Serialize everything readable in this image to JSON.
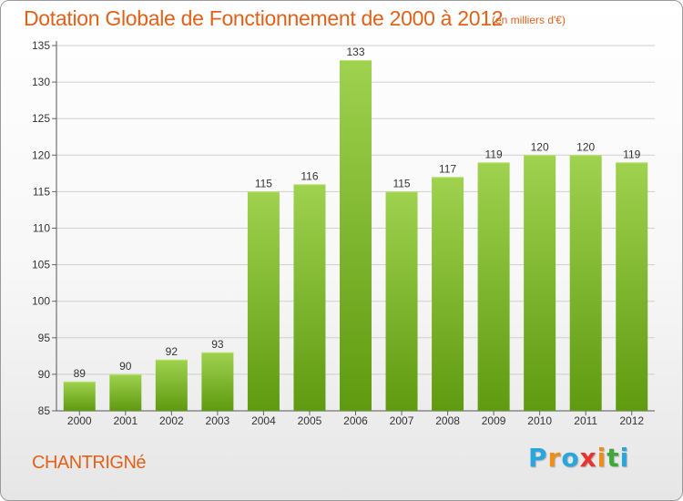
{
  "header": {
    "title": "Dotation Globale de Fonctionnement de 2000 à 2012",
    "unit": "(en milliers d'€)"
  },
  "footer": {
    "commune": "CHANTRIGNé",
    "logo": {
      "text": "Proxiti",
      "letter_colors": [
        "#2aa6de",
        "#f08c1a",
        "#2aa6de",
        "#e8332e",
        "#f08c1a",
        "#3ea93a",
        "#2aa6de"
      ]
    }
  },
  "colors": {
    "accent": "#e0621a",
    "bar_top": "#9fd24f",
    "bar_bottom": "#5f9a10",
    "grid": "#cfcfcf"
  },
  "chart_data": {
    "type": "bar",
    "categories": [
      "2000",
      "2001",
      "2002",
      "2003",
      "2004",
      "2005",
      "2006",
      "2007",
      "2008",
      "2009",
      "2010",
      "2011",
      "2012"
    ],
    "values": [
      89,
      90,
      92,
      93,
      115,
      116,
      133,
      115,
      117,
      119,
      120,
      120,
      119
    ],
    "title": "Dotation Globale de Fonctionnement de 2000 à 2012",
    "xlabel": "",
    "ylabel": "",
    "ylim": [
      85,
      135
    ],
    "yticks": [
      85,
      90,
      95,
      100,
      105,
      110,
      115,
      120,
      125,
      130,
      135
    ],
    "grid": true,
    "data_labels": true
  }
}
